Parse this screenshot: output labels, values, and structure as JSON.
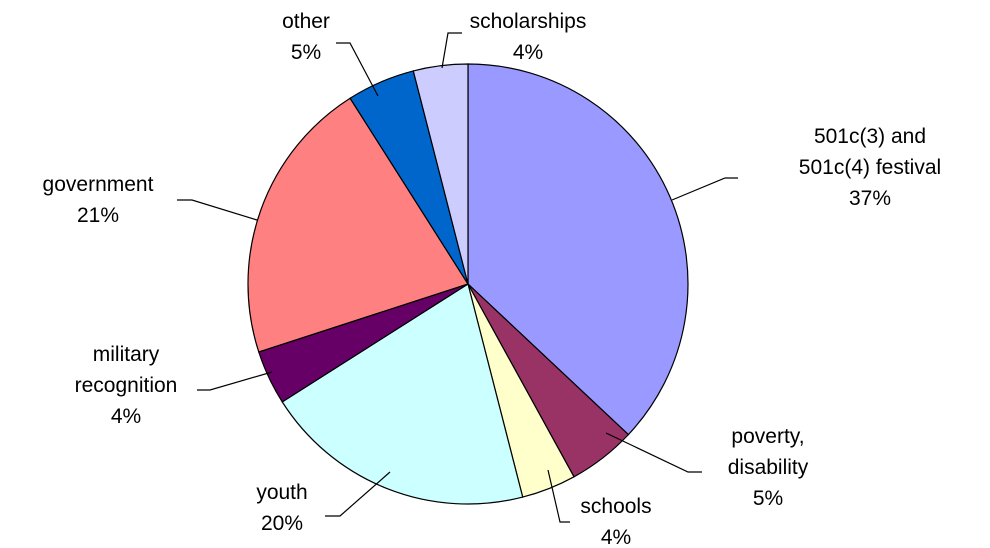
{
  "chart_data": {
    "type": "pie",
    "title": "",
    "start_angle_deg": 0,
    "direction": "clockwise",
    "slices": [
      {
        "label_lines": [
          "501c(3) and",
          "501c(4) festival"
        ],
        "percent_text": "37%",
        "value": 37,
        "color": "#9999FF"
      },
      {
        "label_lines": [
          "poverty,",
          "disability"
        ],
        "percent_text": "5%",
        "value": 5,
        "color": "#993366"
      },
      {
        "label_lines": [
          "schools"
        ],
        "percent_text": "4%",
        "value": 4,
        "color": "#FFFFCC"
      },
      {
        "label_lines": [
          "youth"
        ],
        "percent_text": "20%",
        "value": 20,
        "color": "#CCFFFF"
      },
      {
        "label_lines": [
          "military",
          "recognition"
        ],
        "percent_text": "4%",
        "value": 4,
        "color": "#660066"
      },
      {
        "label_lines": [
          "government"
        ],
        "percent_text": "21%",
        "value": 21,
        "color": "#FF8080"
      },
      {
        "label_lines": [
          "other"
        ],
        "percent_text": "5%",
        "value": 5,
        "color": "#0066CC"
      },
      {
        "label_lines": [
          "scholarships"
        ],
        "percent_text": "4%",
        "value": 4,
        "color": "#CCCCFF"
      }
    ]
  }
}
